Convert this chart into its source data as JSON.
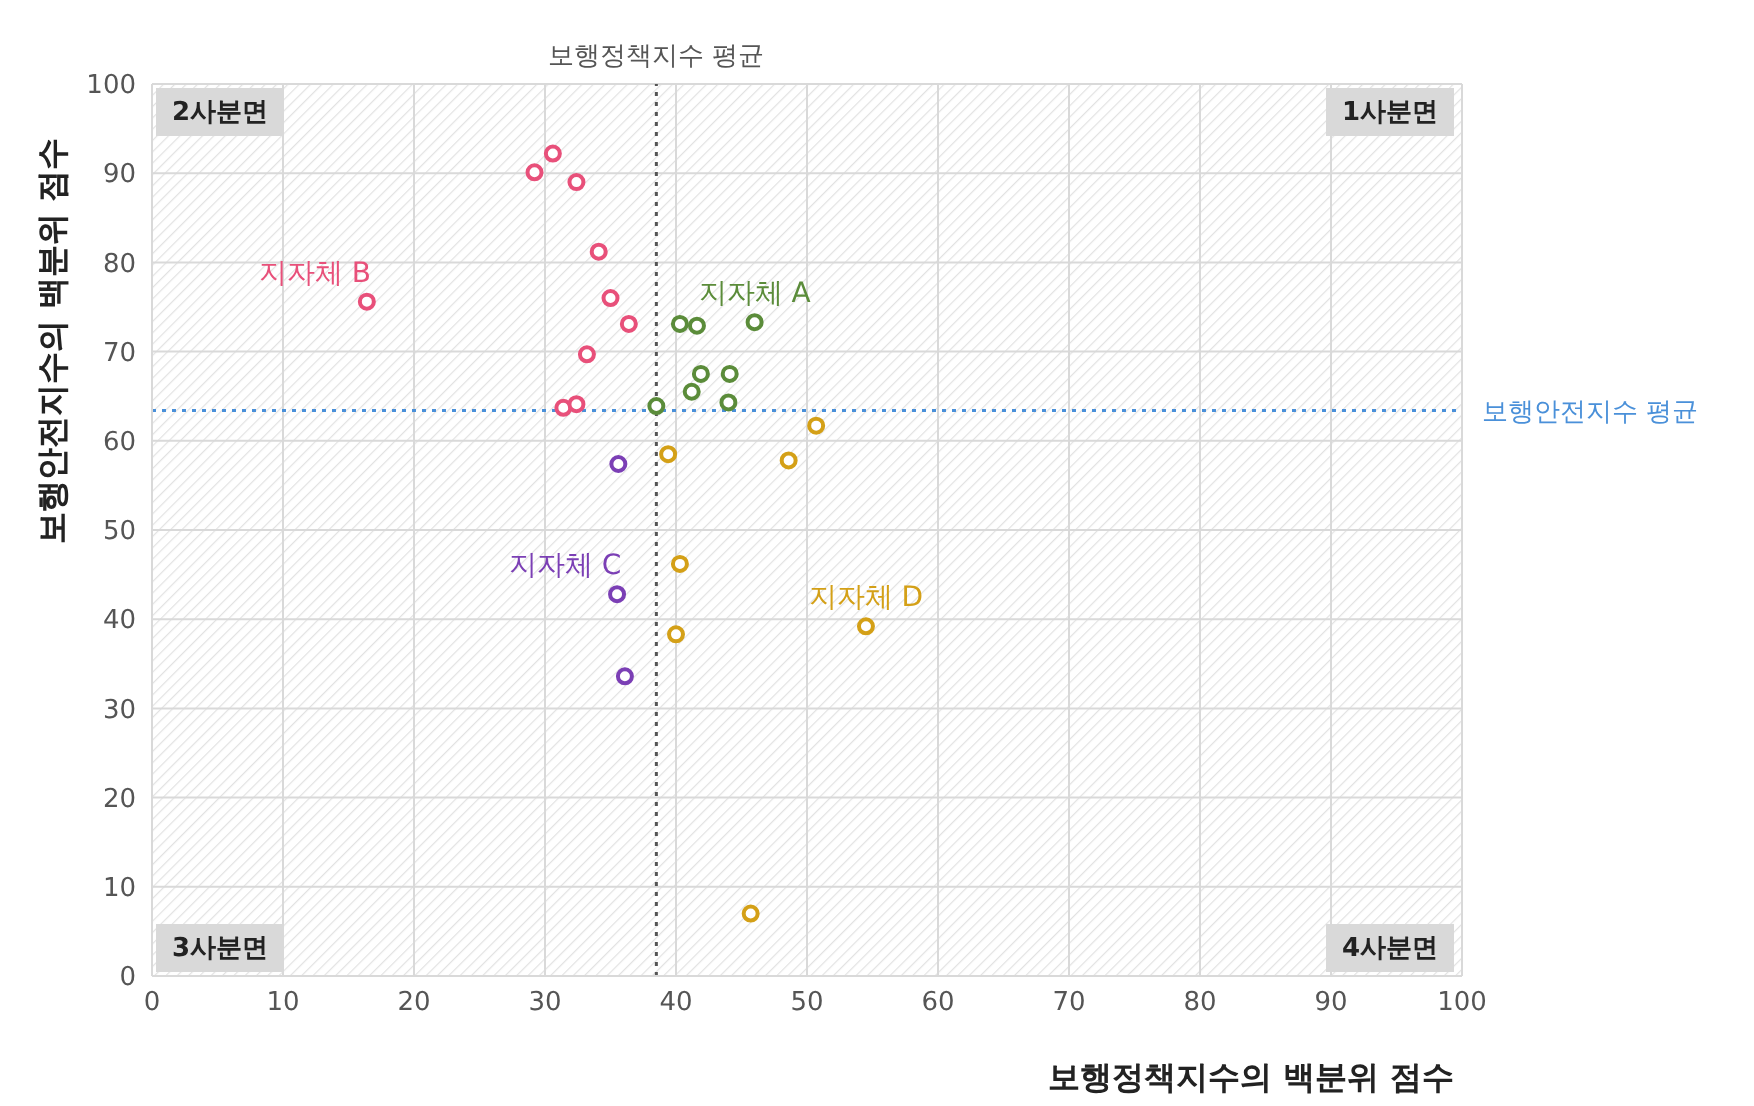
{
  "chart_data": {
    "type": "scatter",
    "xlabel": "보행정책지수의 백분위 점수",
    "ylabel": "보행안전지수의 백분위 점수",
    "xlim": [
      0,
      100
    ],
    "ylim": [
      0,
      100
    ],
    "xticks": [
      0,
      10,
      20,
      30,
      40,
      50,
      60,
      70,
      80,
      90,
      100
    ],
    "yticks": [
      0,
      10,
      20,
      30,
      40,
      50,
      60,
      70,
      80,
      90,
      100
    ],
    "grid": true,
    "marker": "circle",
    "series": [
      {
        "name": "지자체 A",
        "color": "#5b8c3a",
        "x": [
          38.5,
          40.3,
          41.6,
          46.0,
          41.9,
          41.2,
          44.1,
          44.0
        ],
        "values": [
          63.9,
          73.1,
          72.9,
          73.3,
          67.5,
          65.5,
          67.5,
          64.3
        ]
      },
      {
        "name": "지자체 B",
        "color": "#e8507a",
        "x": [
          29.2,
          30.6,
          32.4,
          34.1,
          35.0,
          36.4,
          33.2,
          31.4,
          32.4,
          16.4
        ],
        "values": [
          90.1,
          92.2,
          89.0,
          81.2,
          76.0,
          73.1,
          69.7,
          63.7,
          64.1,
          75.6
        ]
      },
      {
        "name": "지자체 C",
        "color": "#7b3fb5",
        "x": [
          35.6,
          35.5,
          36.1
        ],
        "values": [
          57.4,
          42.8,
          33.6
        ]
      },
      {
        "name": "지자체 D",
        "color": "#d4a017",
        "x": [
          39.4,
          50.7,
          48.6,
          40.3,
          40.0,
          54.5,
          45.7
        ],
        "values": [
          58.5,
          61.7,
          57.8,
          46.2,
          38.3,
          39.2,
          7.0
        ]
      }
    ],
    "ref_lines": [
      {
        "axis": "x",
        "value": 38.5,
        "label": "보행정책지수 평균",
        "color": "#555555",
        "line_style": "dotted"
      },
      {
        "axis": "y",
        "value": 63.4,
        "label": "보행안전지수 평균",
        "color": "#4a90d9",
        "line_style": "dotted"
      }
    ],
    "annotations": [
      "2사분면",
      "1사분면",
      "3사분면",
      "4사분면"
    ]
  }
}
